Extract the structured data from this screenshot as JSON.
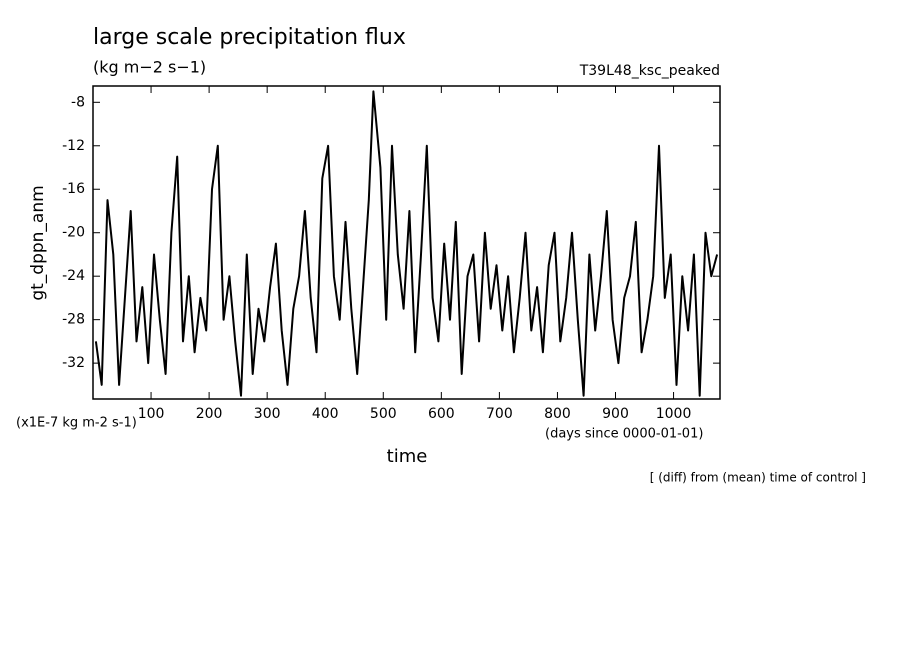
{
  "chart_data": {
    "type": "line",
    "title": "large scale precipitation flux",
    "subtitle": "(kg m−2 s−1)",
    "experiment": "T39L48_ksc_peaked",
    "ylabel": "gt_dppn_anm",
    "yunits": "(x1E-7 kg m-2 s-1)",
    "xlabel": "time",
    "xunits": "(days since 0000-01-01)",
    "note": "[ (diff) from (mean) time of control ]",
    "xlim": [
      0,
      1080
    ],
    "ylim": [
      -35.3,
      -6.5
    ],
    "xticks": [
      100,
      200,
      300,
      400,
      500,
      600,
      700,
      800,
      900,
      1000
    ],
    "yticks": [
      -32,
      -28,
      -24,
      -20,
      -16,
      -12,
      -8
    ],
    "series": [
      {
        "color": "#000000",
        "x": [
          5,
          15,
          25,
          35,
          45,
          55,
          65,
          75,
          85,
          95,
          105,
          115,
          125,
          135,
          145,
          155,
          165,
          175,
          185,
          195,
          205,
          215,
          225,
          235,
          245,
          255,
          265,
          275,
          285,
          295,
          305,
          315,
          325,
          335,
          345,
          355,
          365,
          375,
          385,
          395,
          405,
          415,
          425,
          435,
          445,
          455,
          465,
          475,
          483,
          495,
          505,
          515,
          525,
          535,
          545,
          555,
          565,
          575,
          585,
          595,
          605,
          615,
          625,
          635,
          645,
          655,
          665,
          675,
          685,
          695,
          705,
          715,
          725,
          735,
          745,
          755,
          765,
          775,
          785,
          795,
          805,
          815,
          825,
          835,
          845,
          855,
          865,
          875,
          885,
          895,
          905,
          915,
          925,
          935,
          945,
          955,
          965,
          975,
          985,
          995,
          1005,
          1015,
          1025,
          1035,
          1045,
          1055,
          1065,
          1075
        ],
        "values": [
          -30,
          -34,
          -17,
          -22,
          -34,
          -26,
          -18,
          -30,
          -25,
          -32,
          -22,
          -28,
          -33,
          -20,
          -13,
          -30,
          -24,
          -31,
          -26,
          -29,
          -16,
          -12,
          -28,
          -24,
          -30,
          -35,
          -22,
          -33,
          -27,
          -30,
          -25,
          -21,
          -29,
          -34,
          -27,
          -24,
          -18,
          -26,
          -31,
          -15,
          -12,
          -24,
          -28,
          -19,
          -27,
          -33,
          -25,
          -17,
          -7,
          -14,
          -28,
          -12,
          -22,
          -27,
          -18,
          -31,
          -22,
          -12,
          -26,
          -30,
          -21,
          -28,
          -19,
          -33,
          -24,
          -22,
          -30,
          -20,
          -27,
          -23,
          -29,
          -24,
          -31,
          -26,
          -20,
          -29,
          -25,
          -31,
          -23,
          -20,
          -30,
          -26,
          -20,
          -28,
          -35,
          -22,
          -29,
          -24,
          -18,
          -28,
          -32,
          -26,
          -24,
          -19,
          -31,
          -28,
          -24,
          -12,
          -26,
          -22,
          -34,
          -24,
          -29,
          -22,
          -35,
          -20,
          -24,
          -22
        ]
      }
    ]
  }
}
